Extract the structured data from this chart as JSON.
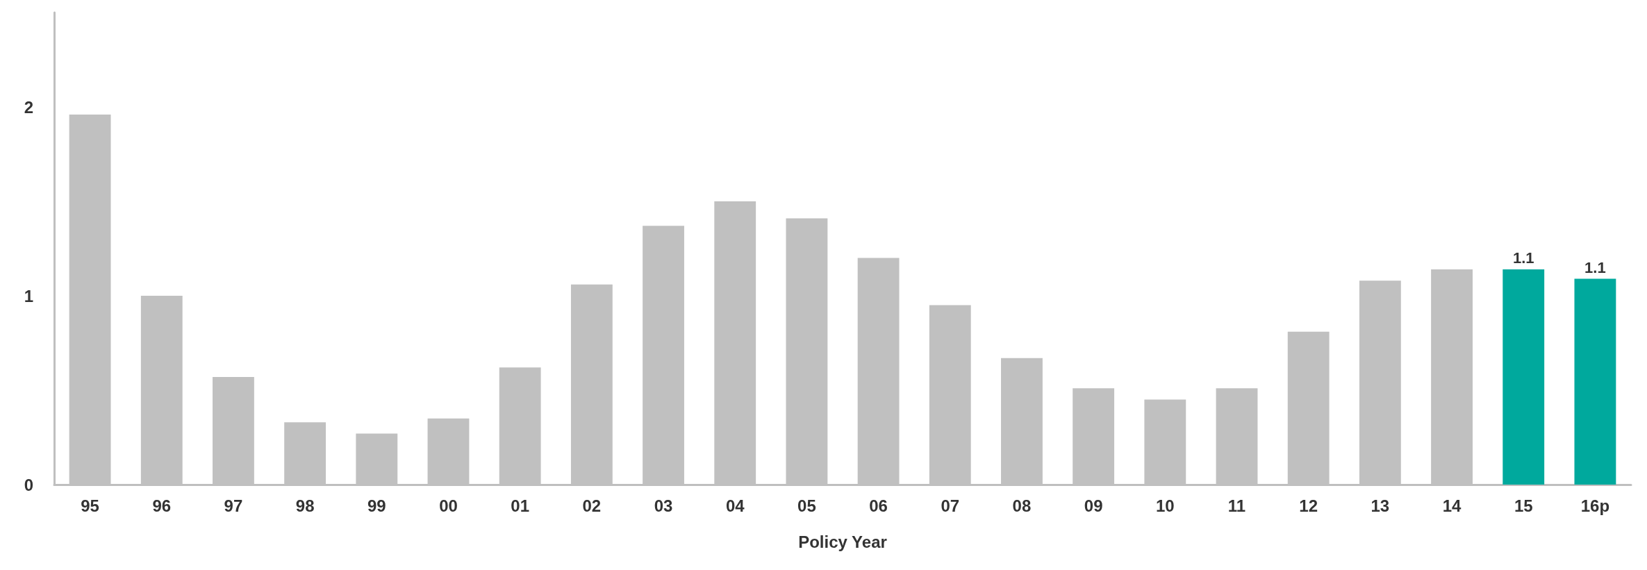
{
  "chart_data": {
    "type": "bar",
    "xlabel": "Policy Year",
    "categories": [
      "95",
      "96",
      "97",
      "98",
      "99",
      "00",
      "01",
      "02",
      "03",
      "04",
      "05",
      "06",
      "07",
      "08",
      "09",
      "10",
      "11",
      "12",
      "13",
      "14",
      "15",
      "16p"
    ],
    "values": [
      1.96,
      1.0,
      0.57,
      0.33,
      0.27,
      0.35,
      0.62,
      1.06,
      1.37,
      1.5,
      1.41,
      1.2,
      0.95,
      0.67,
      0.51,
      0.45,
      0.51,
      0.81,
      1.08,
      1.14,
      1.14,
      1.09
    ],
    "colors": [
      "#c0c0c0",
      "#c0c0c0",
      "#c0c0c0",
      "#c0c0c0",
      "#c0c0c0",
      "#c0c0c0",
      "#c0c0c0",
      "#c0c0c0",
      "#c0c0c0",
      "#c0c0c0",
      "#c0c0c0",
      "#c0c0c0",
      "#c0c0c0",
      "#c0c0c0",
      "#c0c0c0",
      "#c0c0c0",
      "#c0c0c0",
      "#c0c0c0",
      "#c0c0c0",
      "#c0c0c0",
      "#00a99d",
      "#00a99d"
    ],
    "value_labels": [
      null,
      null,
      null,
      null,
      null,
      null,
      null,
      null,
      null,
      null,
      null,
      null,
      null,
      null,
      null,
      null,
      null,
      null,
      null,
      null,
      "1.1",
      "1.1"
    ],
    "ylim": [
      0,
      2.5
    ],
    "yticks": [
      0,
      1,
      2
    ],
    "grid": false
  }
}
